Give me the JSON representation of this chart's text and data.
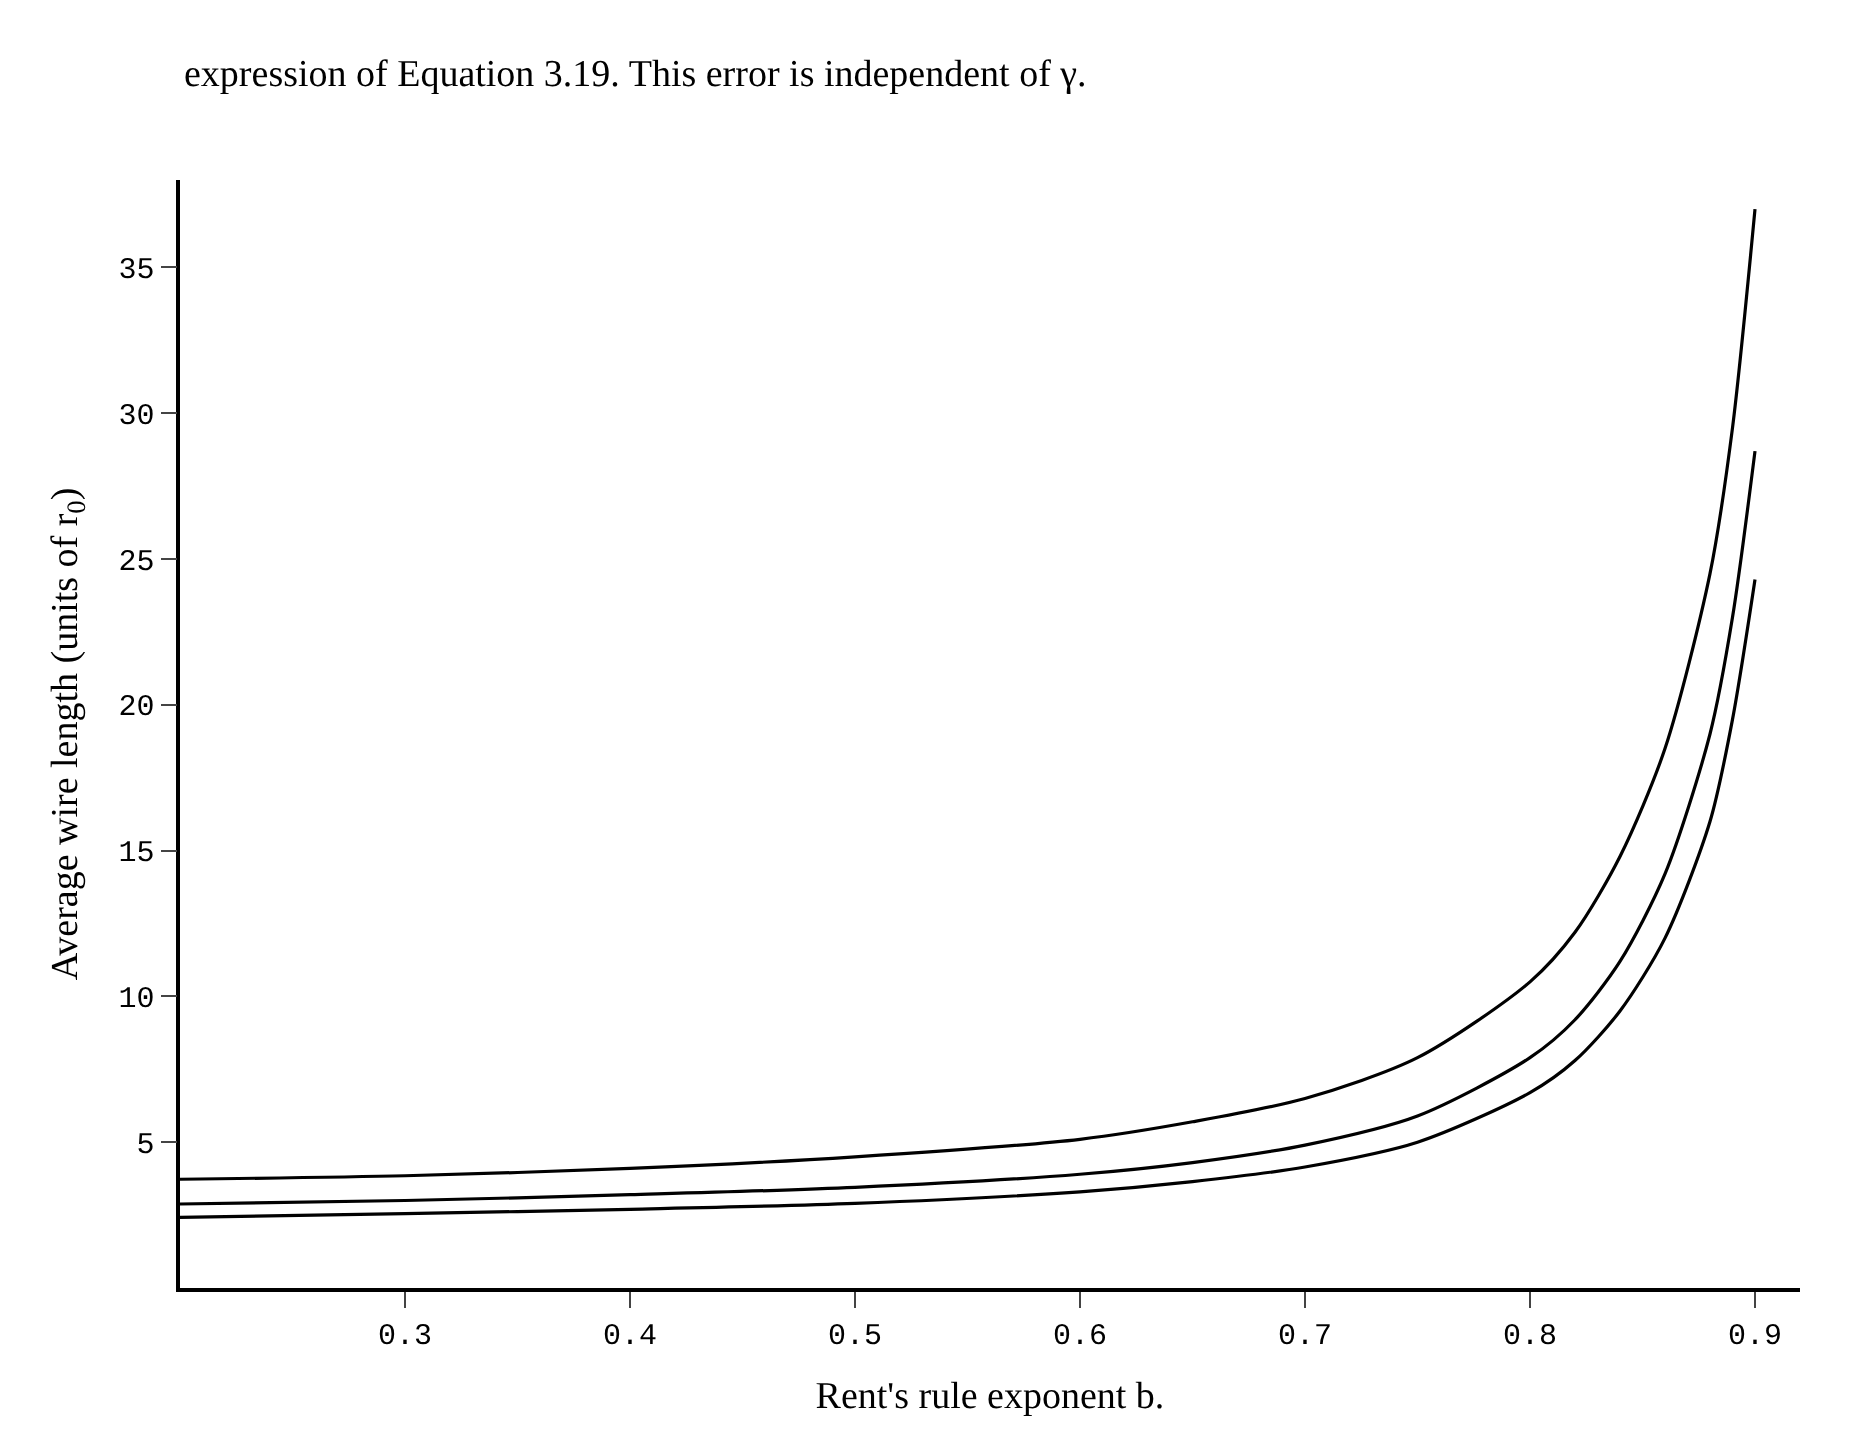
{
  "chart_data": {
    "type": "line",
    "xlabel": "Rent's rule exponent b.",
    "ylabel": "Average wire length (units of r$_{0}$)",
    "annotations": [
      "expression of Equation 3.19. This error is independent of γ."
    ],
    "x": [
      0.2,
      0.3,
      0.4,
      0.5,
      0.6,
      0.65,
      0.7,
      0.75,
      0.8,
      0.82,
      0.84,
      0.86,
      0.88,
      0.89,
      0.9
    ],
    "series": [
      {
        "color": "#000000",
        "values": [
          3.73,
          3.85,
          4.1,
          4.5,
          5.1,
          5.7,
          6.5,
          7.9,
          10.5,
          12.2,
          14.8,
          18.5,
          24.5,
          29.5,
          37
        ]
      },
      {
        "color": "#000000",
        "values": [
          2.88,
          3.0,
          3.2,
          3.45,
          3.9,
          4.3,
          4.9,
          5.9,
          7.9,
          9.2,
          11.2,
          14.2,
          19.0,
          23.0,
          28.7
        ]
      },
      {
        "color": "#000000",
        "values": [
          2.42,
          2.55,
          2.7,
          2.9,
          3.3,
          3.65,
          4.15,
          5.0,
          6.7,
          7.8,
          9.5,
          12.0,
          16.0,
          19.5,
          24.3
        ]
      }
    ],
    "xlim": [
      0.2,
      0.92
    ],
    "ylim": [
      0,
      38
    ],
    "xticks": [
      0.3,
      0.4,
      0.5,
      0.6,
      0.7,
      0.8,
      0.9
    ],
    "yticks": [
      5,
      10,
      15,
      20,
      25,
      30,
      35
    ],
    "marker": "none",
    "line_style": "solid"
  }
}
